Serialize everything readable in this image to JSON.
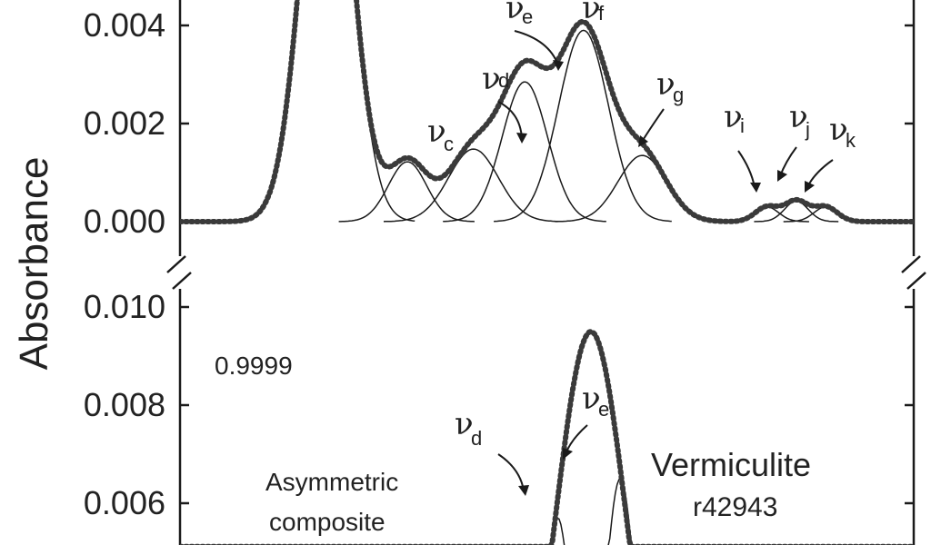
{
  "chart_data": [
    {
      "panel": "upper",
      "type": "line",
      "ylabel": "Absorbance",
      "yticks": [
        "0.000",
        "0.002",
        "0.004"
      ],
      "ylim": [
        -0.0005,
        0.0045
      ],
      "xlim": [
        0,
        100
      ],
      "components": [
        {
          "name": "νc",
          "sub": "c",
          "center": 31,
          "height": 0.00122,
          "sigma": 2.6
        },
        {
          "name": "νd",
          "sub": "d",
          "center": 40,
          "height": 0.00148,
          "sigma": 3.4
        },
        {
          "name": "νe",
          "sub": "e",
          "center": 47,
          "height": 0.00285,
          "sigma": 3.1
        },
        {
          "name": "νf",
          "sub": "f",
          "center": 55,
          "height": 0.0039,
          "sigma": 3.4
        },
        {
          "name": "νg",
          "sub": "g",
          "center": 63,
          "height": 0.00135,
          "sigma": 3.3
        },
        {
          "name": "νi",
          "sub": "i",
          "center": 80,
          "height": 0.0003,
          "sigma": 1.6
        },
        {
          "name": "νj",
          "sub": "j",
          "center": 84,
          "height": 0.00042,
          "sigma": 1.6
        },
        {
          "name": "νk",
          "sub": "k",
          "center": 88,
          "height": 0.0003,
          "sigma": 1.6
        }
      ],
      "major_peak": {
        "center": 20,
        "height": 0.0095,
        "sigma": 3.3
      }
    },
    {
      "panel": "lower",
      "type": "line",
      "yticks": [
        "0.006",
        "0.008",
        "0.010"
      ],
      "ylim": [
        0.0053,
        0.0108
      ],
      "xlim": [
        0,
        100
      ],
      "annotations": {
        "fit_quality": "0.9999",
        "mineral": "Vermiculite",
        "sample_id": "r42943",
        "note_line1": "Asymmetric",
        "note_line2": "composite"
      },
      "components": [
        {
          "name": "νd",
          "sub": "d",
          "center": 51.5,
          "height": 0.0057,
          "sigma": 1.9
        },
        {
          "name": "νe",
          "sub": "e",
          "center": 60,
          "height": 0.0065,
          "sigma": 2.2
        }
      ],
      "envelope": {
        "center": 56,
        "height": 0.0095,
        "sigma": 4.8
      }
    }
  ]
}
